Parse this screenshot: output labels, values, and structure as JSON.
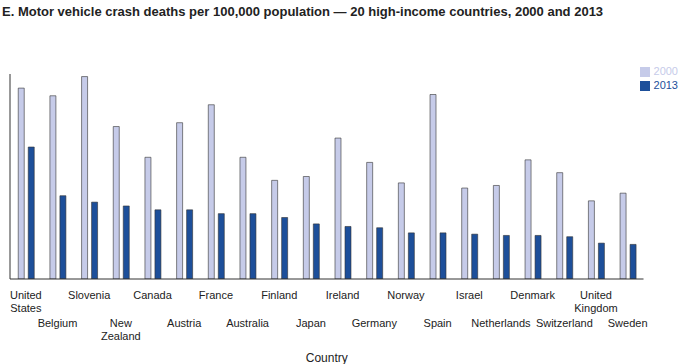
{
  "chart_data": {
    "type": "bar",
    "title": "E. Motor vehicle crash deaths per 100,000 population — 20 high-income countries, 2000 and 2013",
    "x_label": "Country",
    "categories": [
      "United States",
      "Belgium",
      "Slovenia",
      "New Zealand",
      "Canada",
      "Austria",
      "France",
      "Australia",
      "Finland",
      "Japan",
      "Ireland",
      "Germany",
      "Norway",
      "Spain",
      "Israel",
      "Netherlands",
      "Denmark",
      "Switzerland",
      "United Kingdom",
      "Sweden"
    ],
    "series": [
      {
        "name": "2000",
        "color": "#c6cbe9",
        "values": [
          14.9,
          14.3,
          15.8,
          11.9,
          9.5,
          12.2,
          13.6,
          9.5,
          7.7,
          8.0,
          11.0,
          9.1,
          7.5,
          14.4,
          7.1,
          7.3,
          9.3,
          8.3,
          6.1,
          6.7
        ]
      },
      {
        "name": "2013",
        "color": "#1d4f9a",
        "values": [
          10.3,
          6.5,
          6.0,
          5.7,
          5.4,
          5.4,
          5.1,
          5.1,
          4.8,
          4.3,
          4.1,
          4.0,
          3.6,
          3.6,
          3.5,
          3.4,
          3.4,
          3.3,
          2.8,
          2.7
        ]
      }
    ],
    "ylim": [
      0,
      16
    ],
    "tick_labels": "x",
    "legend": "top-right"
  }
}
